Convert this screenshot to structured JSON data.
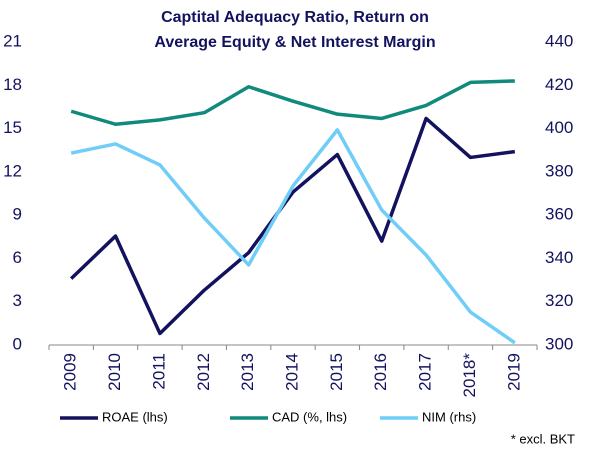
{
  "chart_data": {
    "type": "line",
    "title": [
      "Captital Adequacy Ratio, Return on",
      "Average Equity  & Net Interest Margin"
    ],
    "categories": [
      "2009",
      "2010",
      "2011",
      "2012",
      "2013",
      "2014",
      "2015",
      "2016",
      "2017",
      "2018*",
      "2019"
    ],
    "series": [
      {
        "name": "ROAE (lhs)",
        "color": "#13125e",
        "values": [
          4.6,
          7.55,
          0.8,
          3.8,
          6.4,
          10.6,
          13.2,
          7.2,
          15.7,
          13.0,
          13.4
        ]
      },
      {
        "name": "CAD (%, lhs)",
        "color": "#108a7c",
        "values": [
          16.2,
          15.3,
          15.6,
          16.1,
          17.9,
          16.9,
          16.0,
          15.7,
          16.6,
          18.2,
          18.3
        ]
      },
      {
        "name": "NIM (rhs)",
        "color": "#6fcdf7",
        "axis": "y2",
        "values": [
          388.7,
          392.9,
          383.2,
          358.7,
          337,
          373.5,
          399.4,
          362.4,
          341.6,
          315.2,
          301
        ]
      }
    ],
    "ylim": [
      0,
      21
    ],
    "yticks": [
      0,
      3,
      6,
      9,
      12,
      15,
      18,
      21
    ],
    "y2lim": [
      300,
      440
    ],
    "y2ticks": [
      300,
      320,
      340,
      360,
      380,
      400,
      420,
      440
    ],
    "grid": false,
    "legend": "bottom",
    "annotation": "* excl. BKT"
  }
}
